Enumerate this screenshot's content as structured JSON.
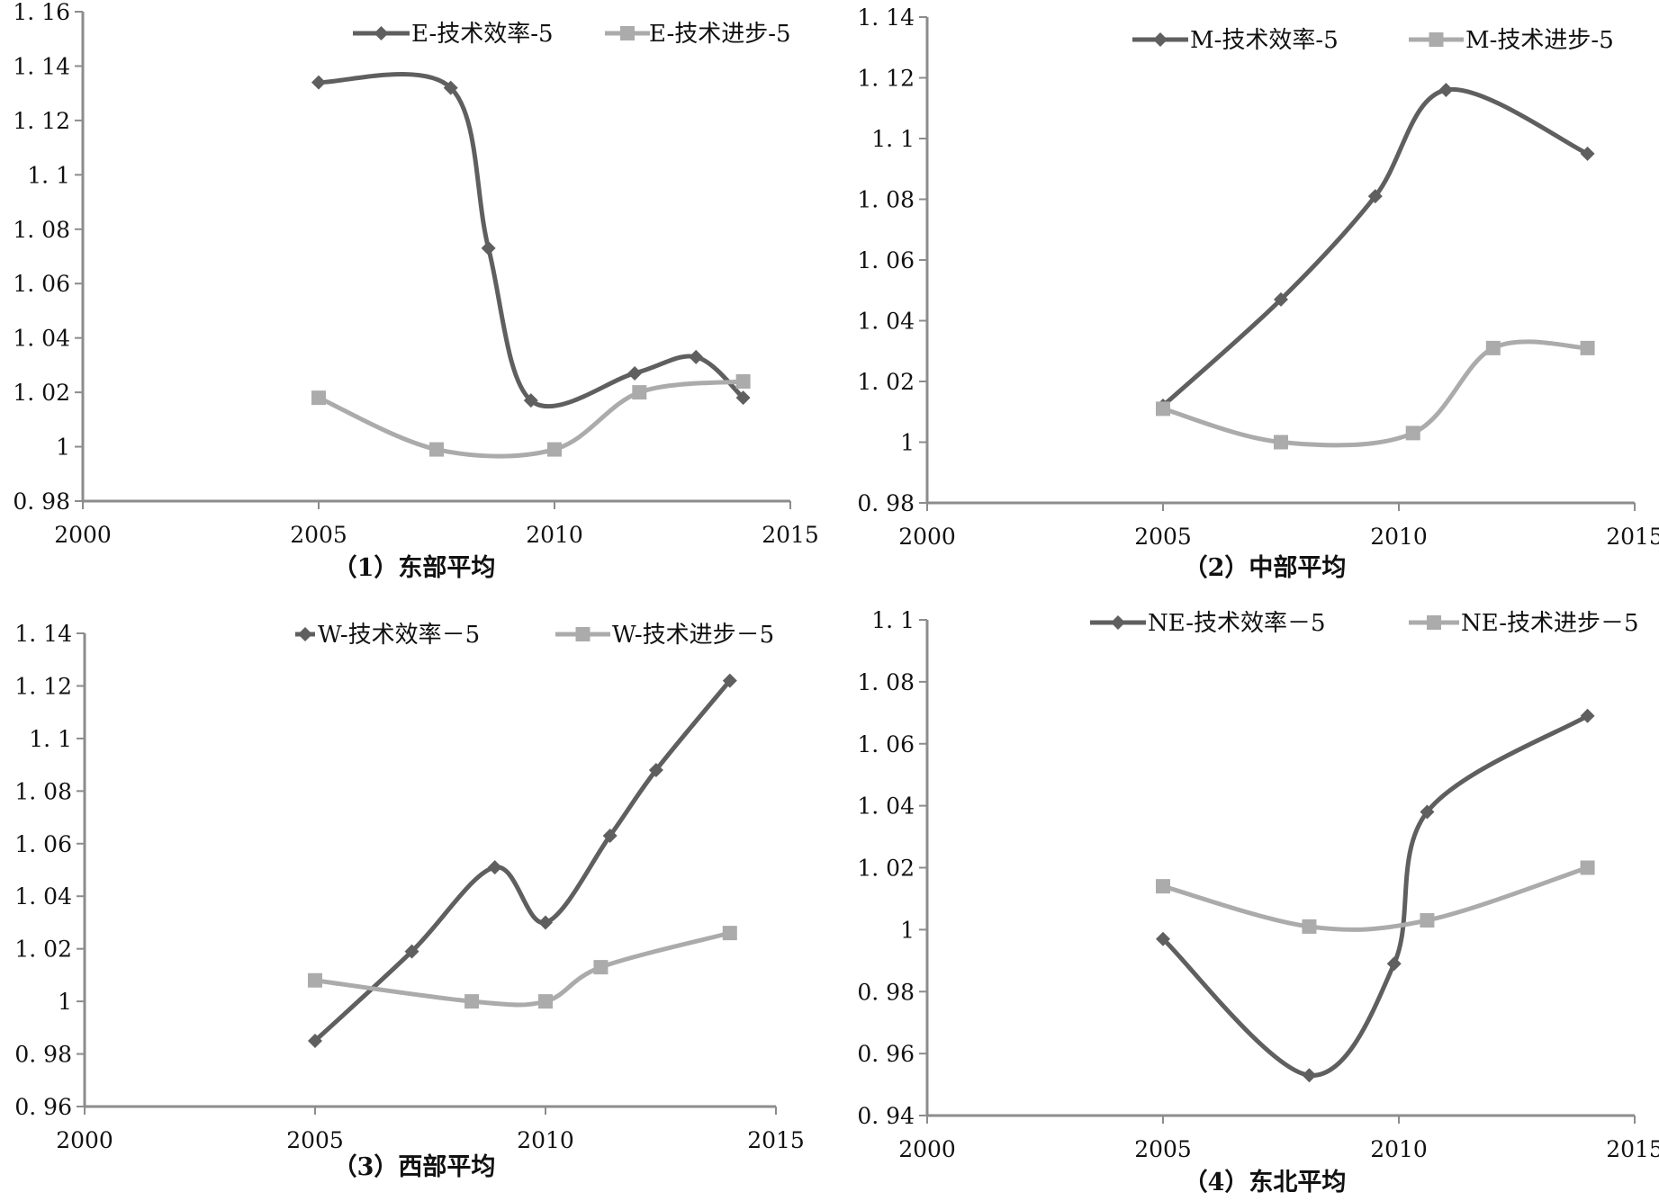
{
  "chart_data": [
    {
      "type": "line",
      "caption": "（1）东部平均",
      "x_ticks": [
        "2000",
        "2005",
        "2010",
        "2015"
      ],
      "xlim": [
        2000,
        2015
      ],
      "y_ticks": [
        "0. 98",
        "1",
        "1. 02",
        "1. 04",
        "1. 06",
        "1. 08",
        "1. 1",
        "1. 12",
        "1. 14",
        "1. 16"
      ],
      "ylim": [
        0.98,
        1.16
      ],
      "grid": false,
      "legend_position": "top-right",
      "series": [
        {
          "name": "E-技术效率-5",
          "marker": "diamond",
          "color": "#5f5f5f",
          "points": [
            [
              2005.0,
              1.134
            ],
            [
              2007.8,
              1.132
            ],
            [
              2008.6,
              1.073
            ],
            [
              2009.5,
              1.017
            ],
            [
              2011.7,
              1.027
            ],
            [
              2013.0,
              1.033
            ],
            [
              2014.0,
              1.018
            ]
          ]
        },
        {
          "name": "E-技术进步-5",
          "marker": "square",
          "color": "#ababab",
          "points": [
            [
              2005.0,
              1.018
            ],
            [
              2007.5,
              0.999
            ],
            [
              2010.0,
              0.999
            ],
            [
              2011.8,
              1.02
            ],
            [
              2014.0,
              1.024
            ]
          ]
        }
      ]
    },
    {
      "type": "line",
      "caption": "（2）中部平均",
      "x_ticks": [
        "2000",
        "2005",
        "2010",
        "2015"
      ],
      "xlim": [
        2000,
        2015
      ],
      "y_ticks": [
        "0. 98",
        "1",
        "1. 02",
        "1. 04",
        "1. 06",
        "1. 08",
        "1. 1",
        "1. 12",
        "1. 14"
      ],
      "ylim": [
        0.98,
        1.14
      ],
      "grid": false,
      "legend_position": "top-right",
      "series": [
        {
          "name": "M-技术效率-5",
          "marker": "diamond",
          "color": "#5f5f5f",
          "points": [
            [
              2005.0,
              1.012
            ],
            [
              2007.5,
              1.047
            ],
            [
              2009.5,
              1.081
            ],
            [
              2011.0,
              1.116
            ],
            [
              2014.0,
              1.095
            ]
          ]
        },
        {
          "name": "M-技术进步-5",
          "marker": "square",
          "color": "#ababab",
          "points": [
            [
              2005.0,
              1.011
            ],
            [
              2007.5,
              1.0
            ],
            [
              2010.3,
              1.003
            ],
            [
              2012.0,
              1.031
            ],
            [
              2014.0,
              1.031
            ]
          ]
        }
      ]
    },
    {
      "type": "line",
      "caption": "（3）西部平均",
      "x_ticks": [
        "2000",
        "2005",
        "2010",
        "2015"
      ],
      "xlim": [
        2000,
        2015
      ],
      "y_ticks": [
        "0. 96",
        "0. 98",
        "1",
        "1. 02",
        "1. 04",
        "1. 06",
        "1. 08",
        "1. 1",
        "1. 12",
        "1. 14"
      ],
      "ylim": [
        0.96,
        1.14
      ],
      "grid": false,
      "legend_position": "top-right",
      "series": [
        {
          "name": "W-技术效率－5",
          "marker": "diamond",
          "color": "#5f5f5f",
          "points": [
            [
              2005.0,
              0.985
            ],
            [
              2007.1,
              1.019
            ],
            [
              2008.9,
              1.051
            ],
            [
              2010.0,
              1.03
            ],
            [
              2011.4,
              1.063
            ],
            [
              2012.4,
              1.088
            ],
            [
              2014.0,
              1.122
            ]
          ]
        },
        {
          "name": "W-技术进步－5",
          "marker": "square",
          "color": "#ababab",
          "points": [
            [
              2005.0,
              1.008
            ],
            [
              2008.4,
              1.0
            ],
            [
              2010.0,
              1.0
            ],
            [
              2011.2,
              1.013
            ],
            [
              2014.0,
              1.026
            ]
          ]
        }
      ]
    },
    {
      "type": "line",
      "caption": "（4）东北平均",
      "x_ticks": [
        "2000",
        "2005",
        "2010",
        "2015"
      ],
      "xlim": [
        2000,
        2015
      ],
      "y_ticks": [
        "0. 94",
        "0. 96",
        "0. 98",
        "1",
        "1. 02",
        "1. 04",
        "1. 06",
        "1. 08",
        "1. 1"
      ],
      "ylim": [
        0.94,
        1.1
      ],
      "grid": false,
      "legend_position": "top-right",
      "series": [
        {
          "name": "NE-技术效率－5",
          "marker": "diamond",
          "color": "#5f5f5f",
          "points": [
            [
              2005.0,
              0.997
            ],
            [
              2008.1,
              0.953
            ],
            [
              2009.9,
              0.989
            ],
            [
              2010.6,
              1.038
            ],
            [
              2014.0,
              1.069
            ]
          ]
        },
        {
          "name": "NE-技术进步－5",
          "marker": "square",
          "color": "#ababab",
          "points": [
            [
              2005.0,
              1.014
            ],
            [
              2008.1,
              1.001
            ],
            [
              2010.6,
              1.003
            ],
            [
              2014.0,
              1.02
            ]
          ]
        }
      ]
    }
  ]
}
